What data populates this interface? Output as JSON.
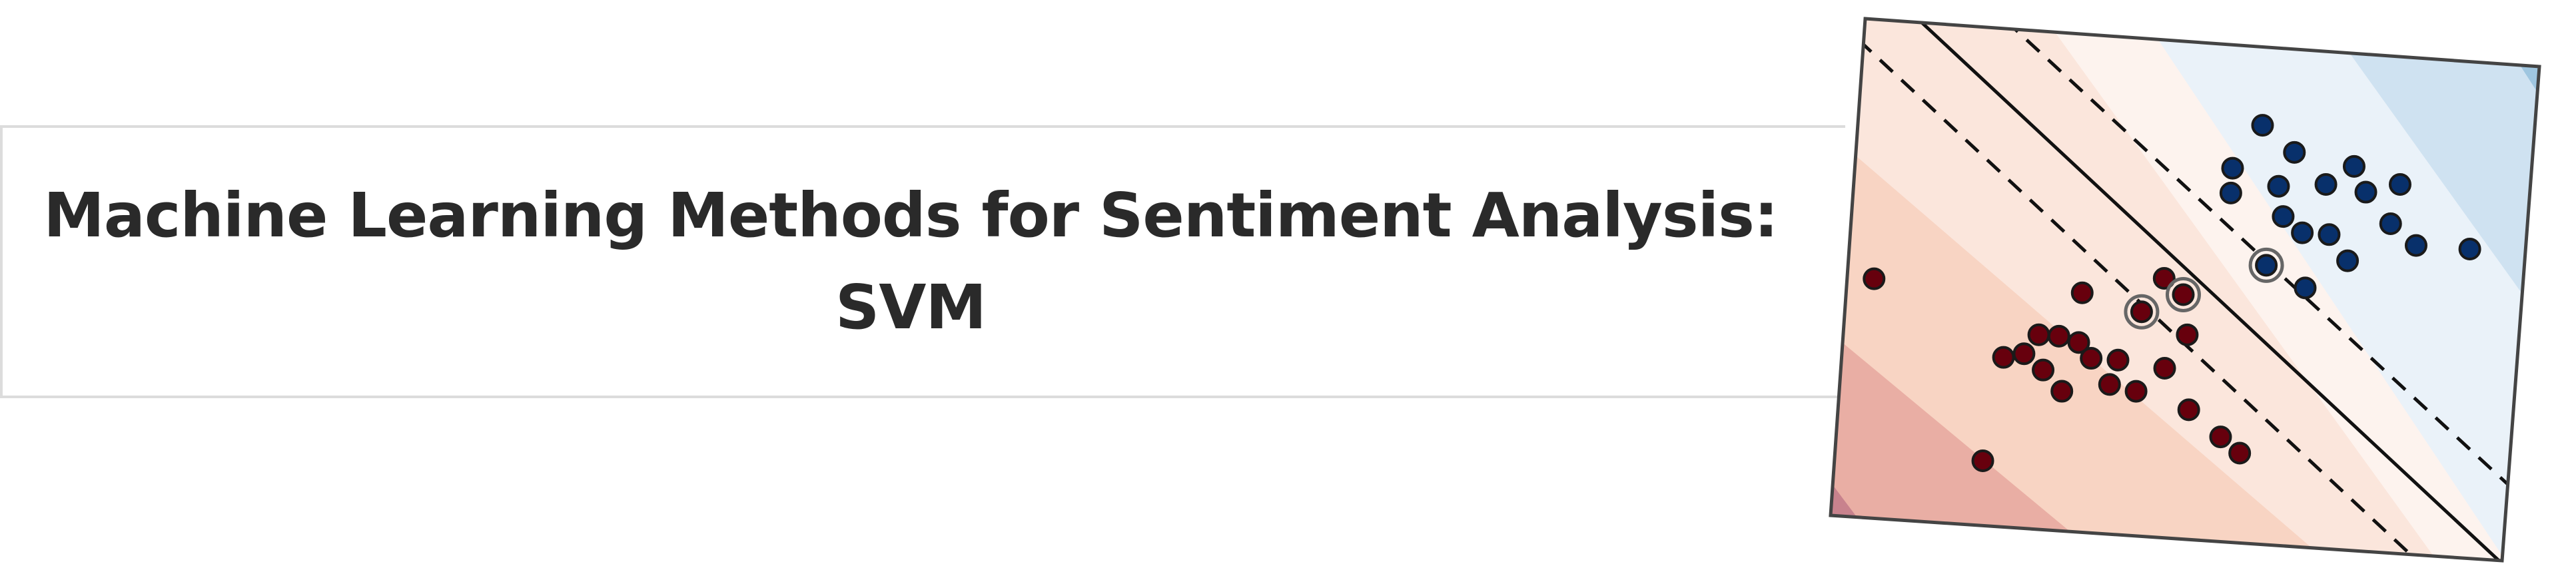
{
  "slide": {
    "title_line1": "Machine Learning Methods for Sentiment Analysis:",
    "title_line2": "SVM"
  },
  "chart_data": {
    "type": "scatter",
    "title": "",
    "xlabel": "",
    "ylabel": "",
    "grid": false,
    "decision_boundary": "linear",
    "colors": {
      "class_a": "#08306b",
      "class_b": "#67000d",
      "support_vector_ring": "#666666"
    },
    "series": [
      {
        "values_xy": [
          [
            0.6,
            0.84
          ],
          [
            0.65,
            0.79
          ],
          [
            0.56,
            0.75
          ],
          [
            0.63,
            0.72
          ],
          [
            0.7,
            0.73
          ],
          [
            0.76,
            0.72
          ],
          [
            0.74,
            0.77
          ],
          [
            0.56,
            0.7
          ],
          [
            0.64,
            0.66
          ],
          [
            0.67,
            0.63
          ],
          [
            0.71,
            0.63
          ],
          [
            0.81,
            0.74
          ],
          [
            0.8,
            0.66
          ],
          [
            0.84,
            0.62
          ],
          [
            0.74,
            0.58
          ],
          [
            0.62,
            0.56
          ],
          [
            0.68,
            0.52
          ],
          [
            0.92,
            0.62
          ]
        ]
      },
      {
        "values_xy": [
          [
            0.04,
            0.48
          ],
          [
            0.35,
            0.48
          ],
          [
            0.47,
            0.52
          ],
          [
            0.5,
            0.49
          ],
          [
            0.44,
            0.45
          ],
          [
            0.51,
            0.41
          ],
          [
            0.29,
            0.39
          ],
          [
            0.32,
            0.39
          ],
          [
            0.35,
            0.38
          ],
          [
            0.37,
            0.35
          ],
          [
            0.27,
            0.35
          ],
          [
            0.3,
            0.32
          ],
          [
            0.24,
            0.34
          ],
          [
            0.41,
            0.35
          ],
          [
            0.4,
            0.3
          ],
          [
            0.33,
            0.28
          ],
          [
            0.48,
            0.34
          ],
          [
            0.44,
            0.29
          ],
          [
            0.52,
            0.26
          ],
          [
            0.57,
            0.21
          ],
          [
            0.6,
            0.18
          ],
          [
            0.22,
            0.13
          ]
        ]
      }
    ],
    "support_vectors": [
      [
        0.62,
        0.56
      ],
      [
        0.44,
        0.45
      ],
      [
        0.5,
        0.49
      ]
    ]
  }
}
